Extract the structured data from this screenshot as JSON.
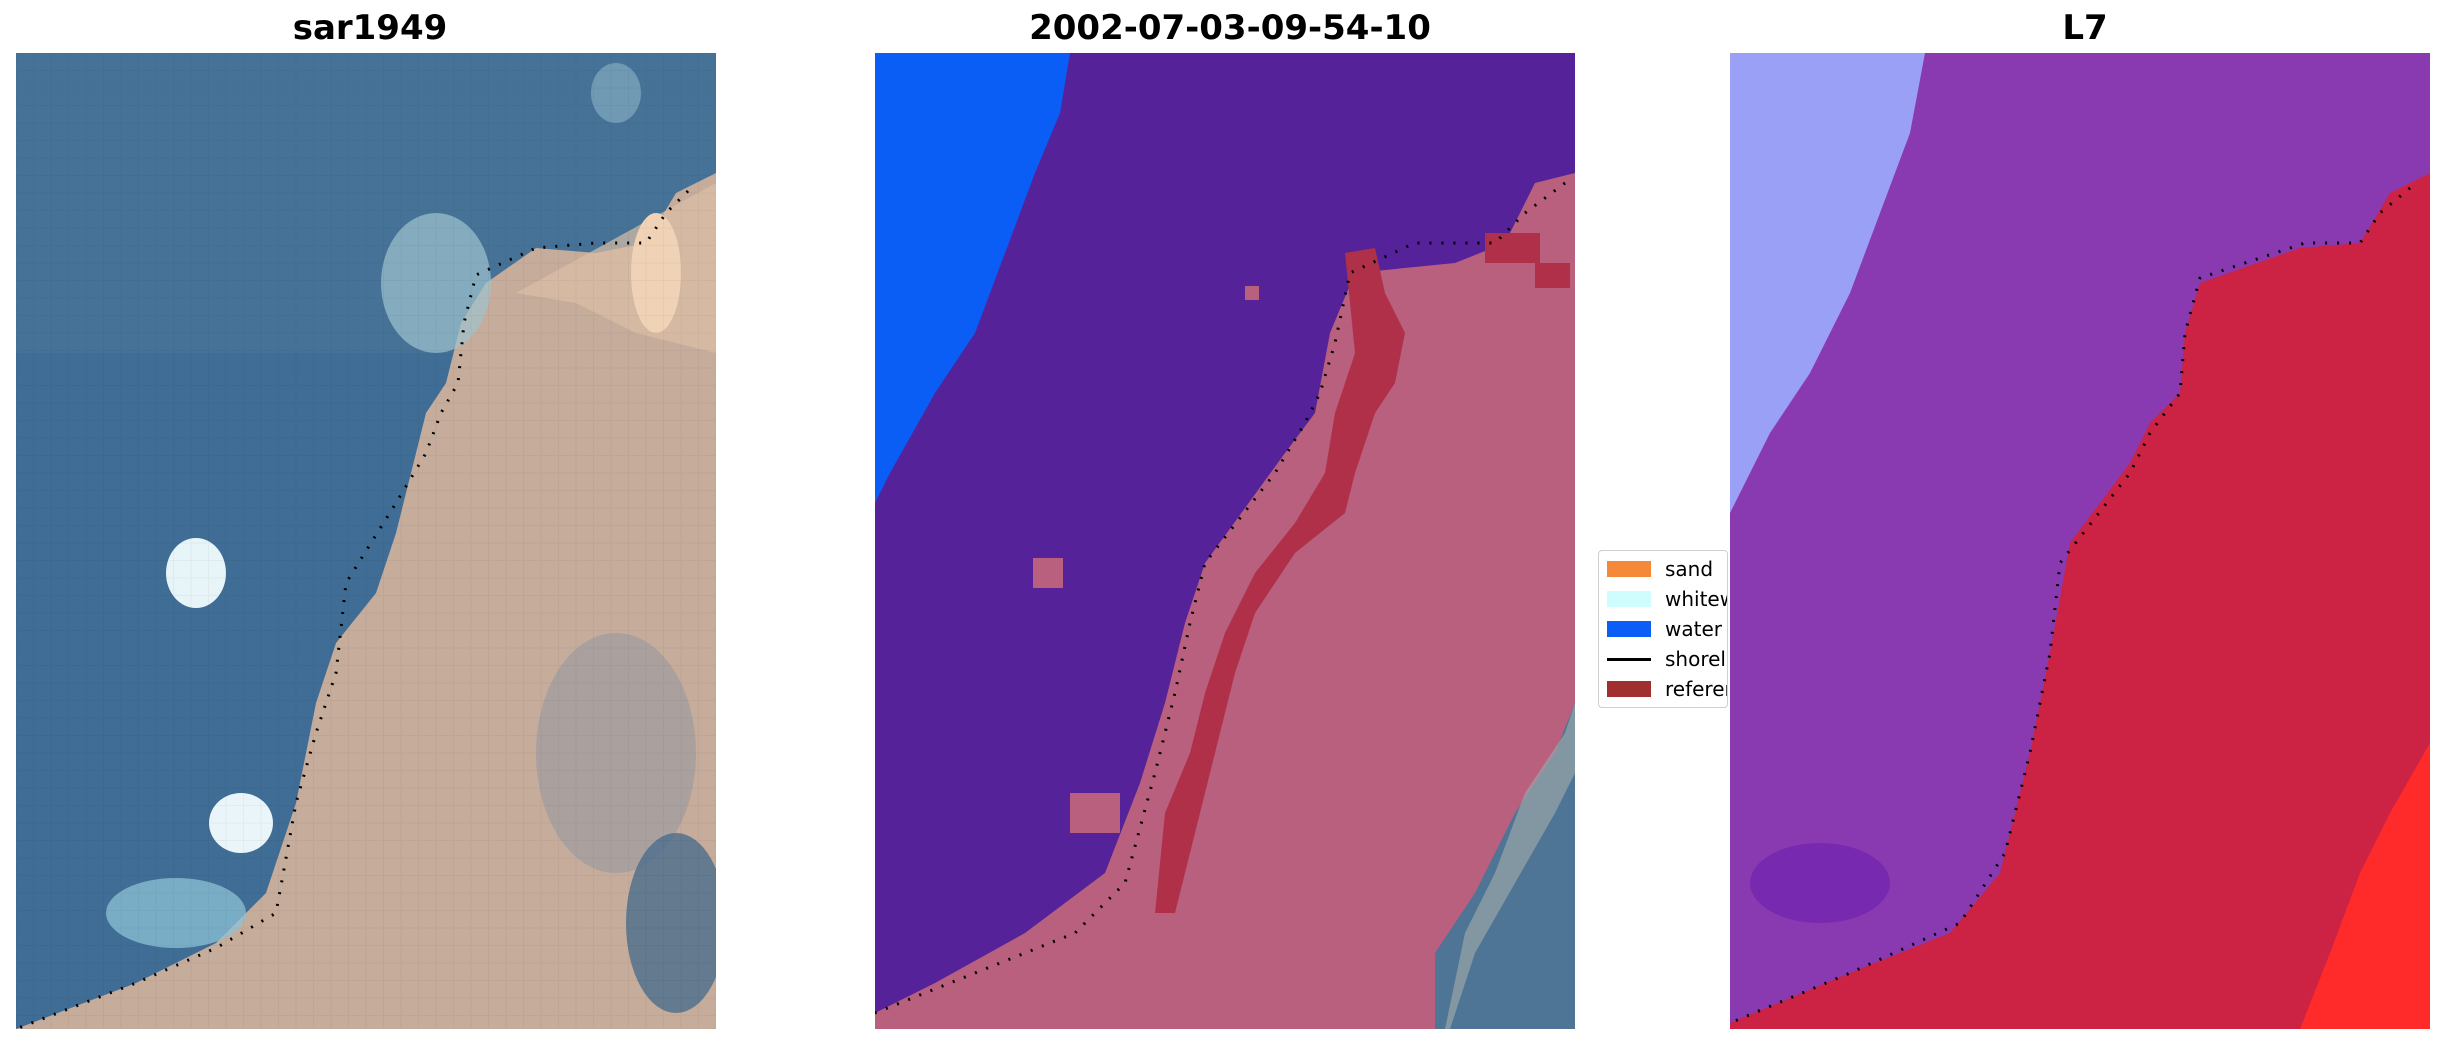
{
  "panels": [
    {
      "title": "sar1949"
    },
    {
      "title": "2002-07-03-09-54-10"
    },
    {
      "title": "L7"
    }
  ],
  "legend": {
    "placement": "center-right of middle panel",
    "items": [
      {
        "label": "sand",
        "color": "#f5893a",
        "kind": "patch"
      },
      {
        "label": "whitew",
        "color": "#cffcfc",
        "kind": "patch"
      },
      {
        "label": "water",
        "color": "#0a5ef5",
        "kind": "patch"
      },
      {
        "label": "shorel",
        "color": "#000000",
        "kind": "line"
      },
      {
        "label": "referen",
        "color": "#a03030",
        "kind": "patch"
      }
    ]
  },
  "colors": {
    "sea": "#3f6d95",
    "land": "#c8b0a0",
    "surf": "#a9d6e3",
    "water_class": "#0a5ef5",
    "classified_sea": "#55229a",
    "classified_land": "#b8607e",
    "reference_sand": "#b0304a",
    "l7_sea": "#8a3ab0",
    "l7_land": "#cc2244",
    "l7_open_water": "#9aa0f5"
  }
}
